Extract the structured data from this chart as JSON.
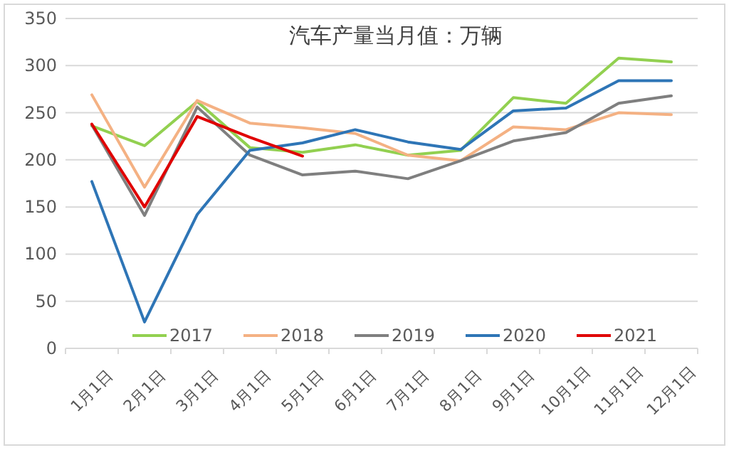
{
  "chart_data": {
    "type": "line",
    "title": "汽车产量当月值：万辆",
    "categories": [
      "1月1日",
      "2月1日",
      "3月1日",
      "4月1日",
      "5月1日",
      "6月1日",
      "7月1日",
      "8月1日",
      "9月1日",
      "10月1日",
      "11月1日",
      "12月1日"
    ],
    "series": [
      {
        "name": "2017",
        "color": "#92d050",
        "values": [
          236,
          215,
          262,
          213,
          208,
          216,
          205,
          210,
          266,
          260,
          308,
          304
        ]
      },
      {
        "name": "2018",
        "color": "#f4b183",
        "values": [
          269,
          171,
          263,
          239,
          234,
          228,
          205,
          199,
          235,
          232,
          250,
          248
        ]
      },
      {
        "name": "2019",
        "color": "#7f7f7f",
        "values": [
          237,
          141,
          256,
          205,
          184,
          188,
          180,
          199,
          220,
          229,
          260,
          268
        ]
      },
      {
        "name": "2020",
        "color": "#2e75b6",
        "values": [
          177,
          28,
          142,
          210,
          218,
          232,
          219,
          211,
          252,
          255,
          284,
          284
        ]
      },
      {
        "name": "2021",
        "color": "#e00000",
        "values": [
          238,
          150,
          246,
          224,
          204,
          null,
          null,
          null,
          null,
          null,
          null,
          null
        ]
      }
    ],
    "ylim": [
      0,
      350
    ],
    "yticks": [
      0,
      50,
      100,
      150,
      200,
      250,
      300,
      350
    ],
    "grid": "y",
    "legend": "bottom",
    "line_style": "solid"
  }
}
